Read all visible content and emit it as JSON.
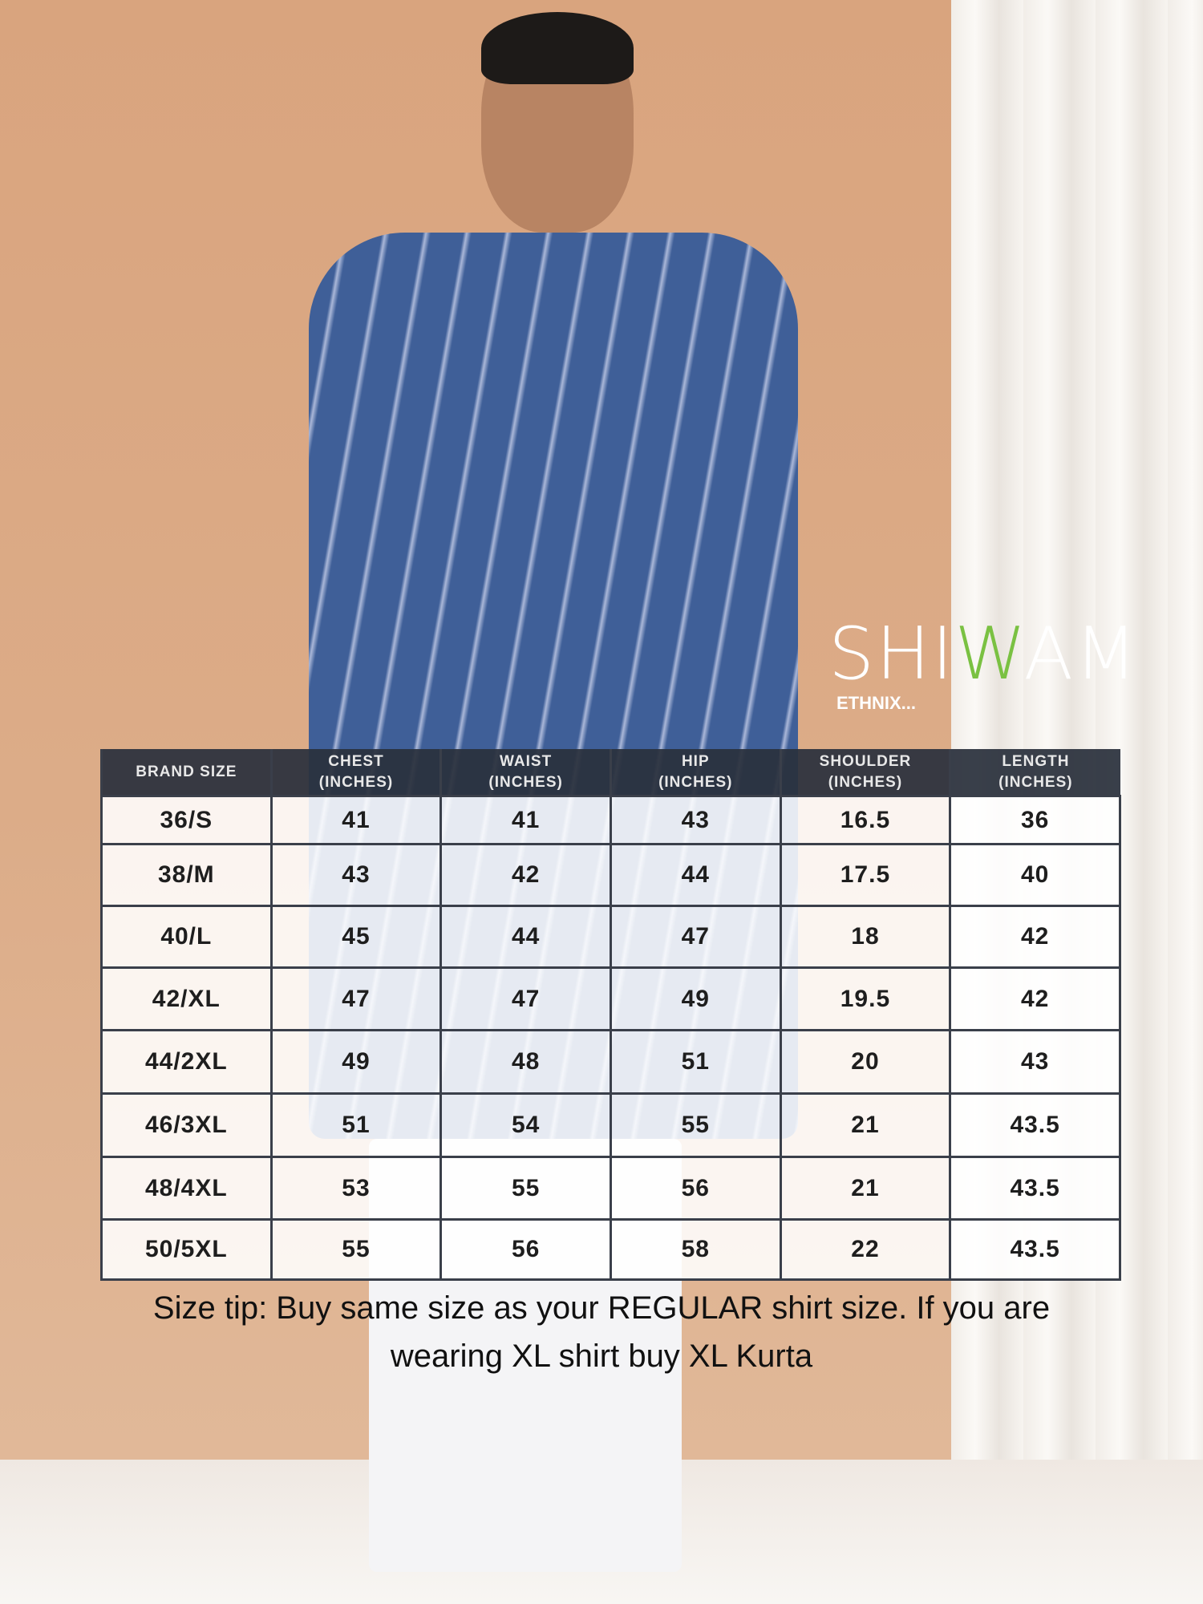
{
  "brand": {
    "name_prefix": "SHI",
    "name_accent": "W",
    "name_suffix": "AM",
    "tagline": "ETHNIX...",
    "accent_color": "#7ac142"
  },
  "table": {
    "headers": [
      [
        "BRAND SIZE",
        ""
      ],
      [
        "CHEST",
        "(INCHES)"
      ],
      [
        "WAIST",
        "(INCHES)"
      ],
      [
        "HIP",
        "(INCHES)"
      ],
      [
        "SHOULDER",
        "(INCHES)"
      ],
      [
        "LENGTH",
        "(INCHES)"
      ]
    ],
    "rows": [
      [
        "36/S",
        "41",
        "41",
        "43",
        "16.5",
        "36"
      ],
      [
        "38/M",
        "43",
        "42",
        "44",
        "17.5",
        "40"
      ],
      [
        "40/L",
        "45",
        "44",
        "47",
        "18",
        "42"
      ],
      [
        "42/XL",
        "47",
        "47",
        "49",
        "19.5",
        "42"
      ],
      [
        "44/2XL",
        "49",
        "48",
        "51",
        "20",
        "43"
      ],
      [
        "46/3XL",
        "51",
        "54",
        "55",
        "21",
        "43.5"
      ],
      [
        "48/4XL",
        "53",
        "55",
        "56",
        "21",
        "43.5"
      ],
      [
        "50/5XL",
        "55",
        "56",
        "58",
        "22",
        "43.5"
      ]
    ]
  },
  "tip": {
    "line1": "Size tip: Buy same size as your REGULAR shirt size. If you are",
    "line2": "wearing XL shirt buy XL Kurta"
  }
}
